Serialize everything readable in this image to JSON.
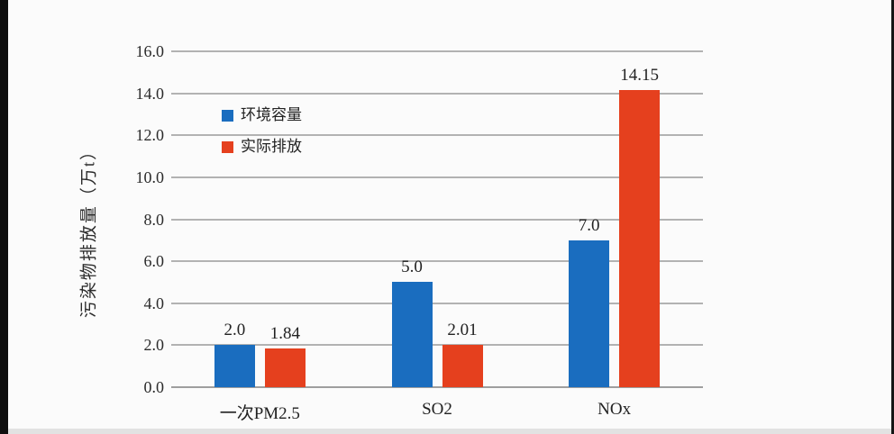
{
  "page": {
    "background": "#fbfbfb",
    "left_border_color": "#0f0f0f",
    "right_border_color": "#151515",
    "bottom_border_color": "#e2e2e2"
  },
  "chart_data": {
    "type": "bar",
    "title": "",
    "xlabel": "",
    "ylabel": "污染物排放量（万t）",
    "categories": [
      "一次PM2.5",
      "SO2",
      "NOx"
    ],
    "series": [
      {
        "name": "环境容量",
        "color": "#1a6dbf",
        "values": [
          2.0,
          5.0,
          7.0
        ],
        "labels": [
          "2.0",
          "5.0",
          "7.0"
        ]
      },
      {
        "name": "实际排放",
        "color": "#e5401e",
        "values": [
          1.84,
          2.01,
          14.15
        ],
        "labels": [
          "1.84",
          "2.01",
          "14.15"
        ]
      }
    ],
    "ylim": [
      0,
      16
    ],
    "ytick_step": 2,
    "yticks": [
      "0.0",
      "2.0",
      "4.0",
      "6.0",
      "8.0",
      "10.0",
      "12.0",
      "14.0",
      "16.0"
    ],
    "grid": true,
    "grid_color": "#b2b2b2",
    "axis_line_color": "#9e9e9e",
    "legend_position": "inside-upper-left"
  }
}
